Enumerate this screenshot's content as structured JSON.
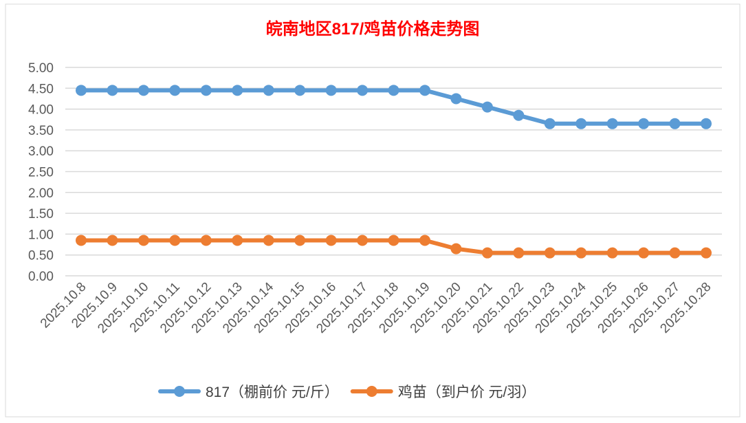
{
  "chart_data": {
    "type": "line",
    "title": "皖南地区817/鸡苗价格走势图",
    "title_color": "#ff0000",
    "x": [
      "2025.10.8",
      "2025.10.9",
      "2025.10.10",
      "2025.10.11",
      "2025.10.12",
      "2025.10.13",
      "2025.10.14",
      "2025.10.15",
      "2025.10.16",
      "2025.10.17",
      "2025.10.18",
      "2025.10.19",
      "2025.10.20",
      "2025.10.21",
      "2025.10.22",
      "2025.10.23",
      "2025.10.24",
      "2025.10.25",
      "2025.10.26",
      "2025.10.27",
      "2025.10.28"
    ],
    "series": [
      {
        "name": "817（棚前价 元/斤）",
        "color": "#5b9bd5",
        "values": [
          4.45,
          4.45,
          4.45,
          4.45,
          4.45,
          4.45,
          4.45,
          4.45,
          4.45,
          4.45,
          4.45,
          4.45,
          4.25,
          4.05,
          3.85,
          3.65,
          3.65,
          3.65,
          3.65,
          3.65,
          3.65
        ]
      },
      {
        "name": "鸡苗（到户价 元/羽）",
        "color": "#ed7d31",
        "values": [
          0.85,
          0.85,
          0.85,
          0.85,
          0.85,
          0.85,
          0.85,
          0.85,
          0.85,
          0.85,
          0.85,
          0.85,
          0.65,
          0.55,
          0.55,
          0.55,
          0.55,
          0.55,
          0.55,
          0.55,
          0.55
        ]
      }
    ],
    "ylim": [
      0,
      5
    ],
    "yticks": [
      "0.00",
      "0.50",
      "1.00",
      "1.50",
      "2.00",
      "2.50",
      "3.00",
      "3.50",
      "4.00",
      "4.50",
      "5.00"
    ],
    "grid": true,
    "legend_position": "bottom"
  }
}
